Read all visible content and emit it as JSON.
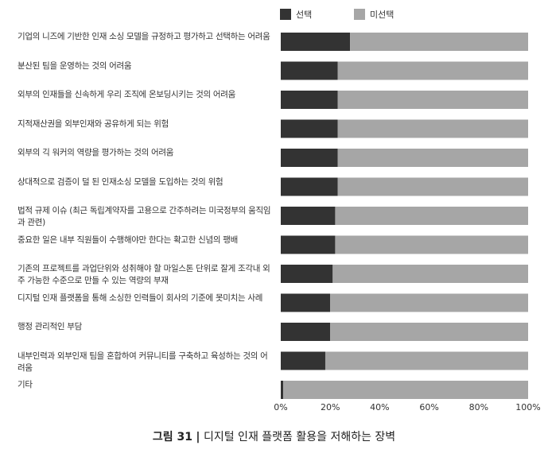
{
  "caption": {
    "number": "그림 31",
    "separator": "|",
    "title": "디지털 인재 플랫폼 활용을 저해하는 장벽"
  },
  "chart_data": {
    "type": "bar",
    "orientation": "horizontal",
    "stacked": true,
    "categories": [
      "기업의 니즈에 기반한 인재 소싱 모델을 규정하고 평가하고 선택하는 어려움",
      "분산된 팀을 운영하는 것의 어려움",
      "외부의 인재들을 신속하게 우리 조직에 온보딩시키는 것의 어려움",
      "지적재산권을 외부인재와 공유하게 되는 위험",
      "외부의 긱 워커의 역량을 평가하는 것의 어려움",
      "상대적으로 검증이 덜 된 인재소싱 모델을 도입하는 것의 위험",
      "법적 규제 이슈 (최근 독립계약자를 고용으로 간주하려는 미국정부의 움직임과 관련)",
      "중요한 일은 내부 직원들이 수행해야만 한다는 확고한 신념의 팽배",
      "기존의 프로젝트를 과업단위와 성취해야 할 마일스톤 단위로 잘게 조각내 외주 가능한 수준으로 만들 수 있는 역량의 부재",
      "디지털 인재 플랫폼을 통해 소싱한 인력들이 회사의 기준에 못미치는 사례",
      "행정 관리적인 부담",
      "내부인력과 외부인재 팀을 혼합하여 커뮤니티를 구축하고 육성하는 것의 어려움",
      "기타"
    ],
    "series": [
      {
        "name": "선택",
        "color": "#333333",
        "values": [
          28,
          23,
          23,
          23,
          23,
          23,
          22,
          22,
          21,
          20,
          20,
          18,
          1
        ]
      },
      {
        "name": "미선택",
        "color": "#a6a6a6",
        "values": [
          72,
          77,
          77,
          77,
          77,
          77,
          78,
          78,
          79,
          80,
          80,
          82,
          99
        ]
      }
    ],
    "xlim": [
      0,
      100
    ],
    "xticks": [
      "0%",
      "20%",
      "40%",
      "60%",
      "80%",
      "100%"
    ],
    "legend_position": "top-right",
    "grid": false
  }
}
